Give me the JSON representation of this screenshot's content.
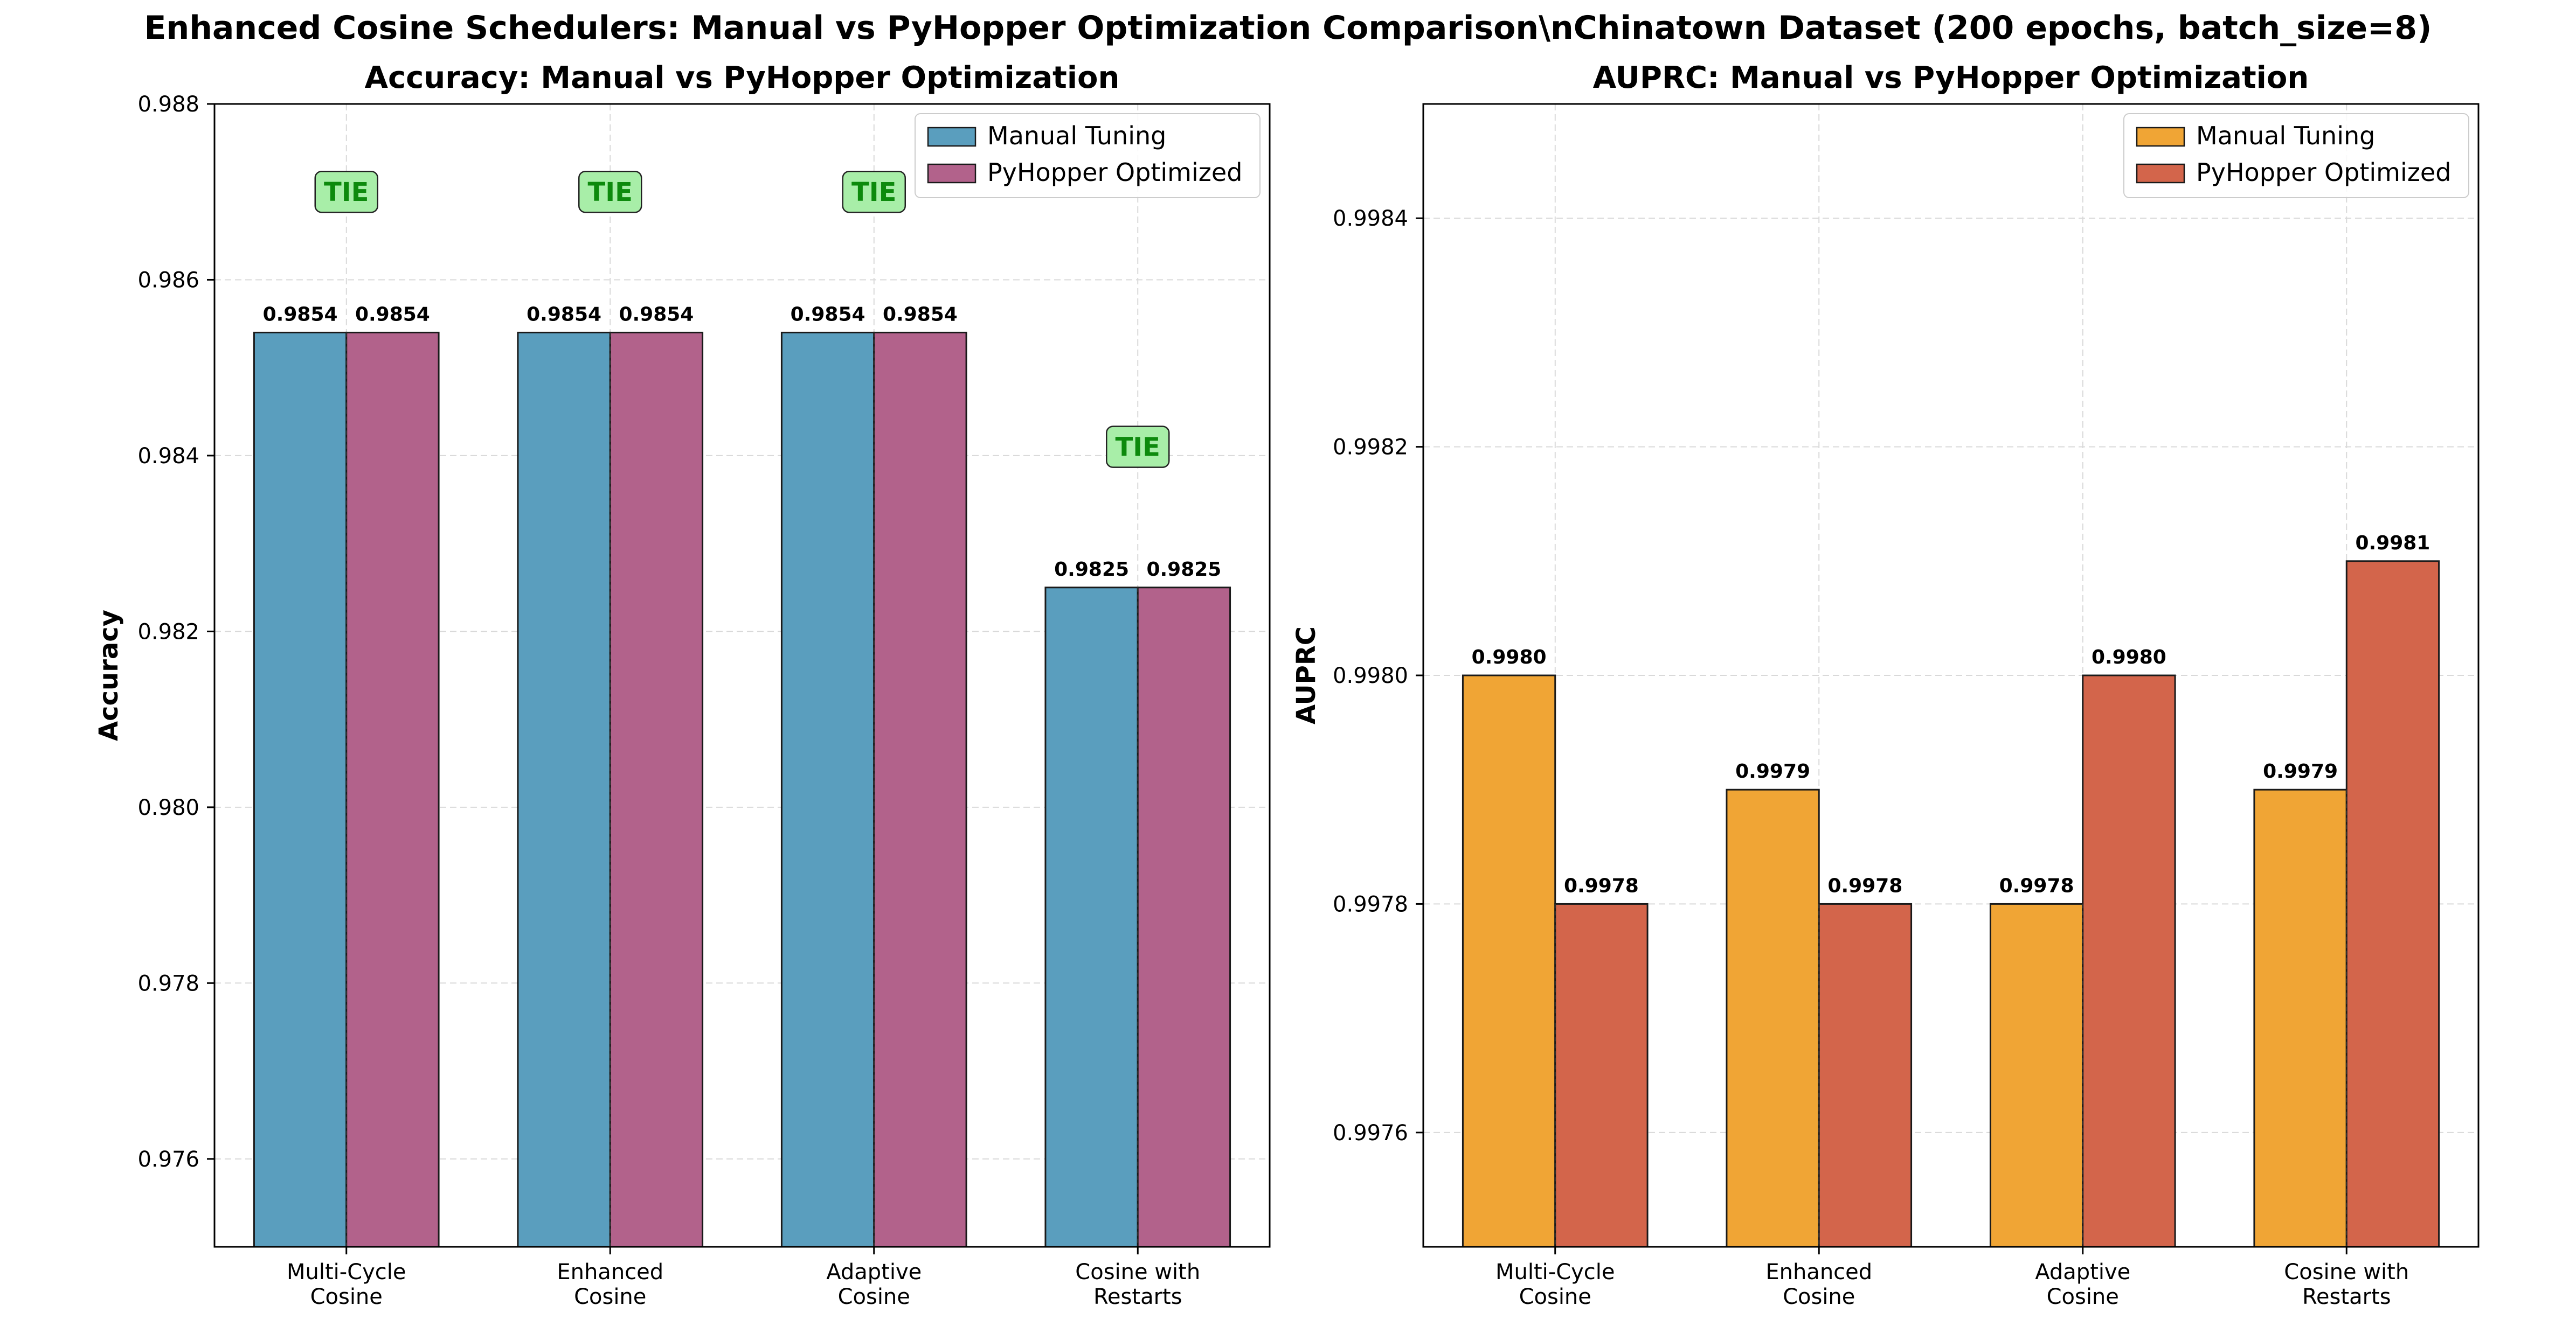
{
  "figure": {
    "suptitle": "Enhanced Cosine Schedulers: Manual vs PyHopper Optimization Comparison\\nChinatown Dataset (200 epochs, batch_size=8)"
  },
  "colors": {
    "manual_accuracy": "#5a9ebe",
    "pyhopper_accuracy": "#b2628b",
    "manual_auprc": "#f0a535",
    "pyhopper_auprc": "#d3654b",
    "tie_badge_fill": "#a8eea8",
    "tie_badge_text": "#0d8a0d",
    "grid": "#d9d9d9"
  },
  "chart_data": [
    {
      "type": "bar",
      "title": "Accuracy: Manual vs PyHopper Optimization",
      "xlabel": "",
      "ylabel": "Accuracy",
      "categories": [
        "Multi-Cycle\nCosine",
        "Enhanced\nCosine",
        "Adaptive\nCosine",
        "Cosine with\nRestarts"
      ],
      "series": [
        {
          "name": "Manual Tuning",
          "values": [
            0.9854,
            0.9854,
            0.9854,
            0.9825
          ],
          "labels": [
            "0.9854",
            "0.9854",
            "0.9854",
            "0.9825"
          ]
        },
        {
          "name": "PyHopper Optimized",
          "values": [
            0.9854,
            0.9854,
            0.9854,
            0.9825
          ],
          "labels": [
            "0.9854",
            "0.9854",
            "0.9854",
            "0.9825"
          ]
        }
      ],
      "annotations": [
        "TIE",
        "TIE",
        "TIE",
        "TIE"
      ],
      "ylim": [
        0.975,
        0.988
      ],
      "yticks": [
        0.976,
        0.978,
        0.98,
        0.982,
        0.984,
        0.986,
        0.988
      ],
      "ytick_labels": [
        "0.976",
        "0.978",
        "0.980",
        "0.982",
        "0.984",
        "0.986",
        "0.988"
      ],
      "grid": true,
      "legend": "upper-right"
    },
    {
      "type": "bar",
      "title": "AUPRC: Manual vs PyHopper Optimization",
      "xlabel": "",
      "ylabel": "AUPRC",
      "categories": [
        "Multi-Cycle\nCosine",
        "Enhanced\nCosine",
        "Adaptive\nCosine",
        "Cosine with\nRestarts"
      ],
      "series": [
        {
          "name": "Manual Tuning",
          "values": [
            0.998,
            0.9979,
            0.9978,
            0.9979
          ],
          "labels": [
            "0.9980",
            "0.9979",
            "0.9978",
            "0.9979"
          ]
        },
        {
          "name": "PyHopper Optimized",
          "values": [
            0.9978,
            0.9978,
            0.998,
            0.9981
          ],
          "labels": [
            "0.9978",
            "0.9978",
            "0.9980",
            "0.9981"
          ]
        }
      ],
      "annotations": [],
      "ylim": [
        0.9975,
        0.9985
      ],
      "yticks": [
        0.9976,
        0.9978,
        0.998,
        0.9982,
        0.9984
      ],
      "ytick_labels": [
        "0.9976",
        "0.9978",
        "0.9980",
        "0.9982",
        "0.9984"
      ],
      "grid": true,
      "legend": "upper-right"
    }
  ]
}
